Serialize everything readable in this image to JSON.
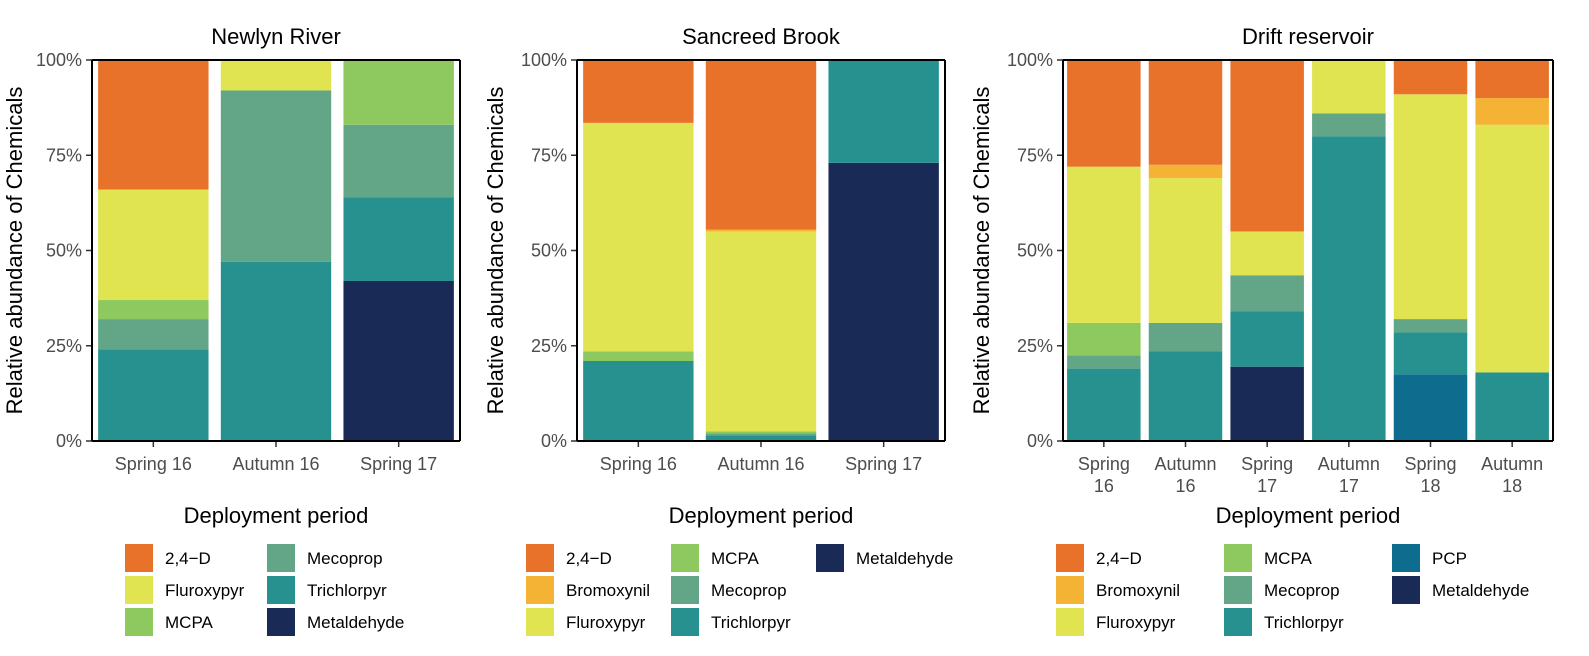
{
  "y_axis_label": "Relative abundance of Chemicals",
  "x_axis_label": "Deployment period",
  "y_ticks": [
    "0%",
    "25%",
    "50%",
    "75%",
    "100%"
  ],
  "colors": {
    "2,4−D": "#e8722a",
    "Bromoxynil": "#f5b335",
    "Fluroxypyr": "#e0e451",
    "MCPA": "#8dc95e",
    "Mecoprop": "#63a687",
    "Trichlorpyr": "#26918f",
    "PCP": "#0e6d8e",
    "Metaldehyde": "#1a2a56"
  },
  "chart_data": [
    {
      "type": "bar",
      "stacked": true,
      "title": "Newlyn River",
      "xlabel": "Deployment period",
      "ylabel": "Relative abundance of Chemicals",
      "ylim": [
        0,
        100
      ],
      "categories": [
        "Spring 16",
        "Autumn 16",
        "Spring 17"
      ],
      "series": [
        {
          "name": "Metaldehyde",
          "values": [
            0,
            0,
            42
          ]
        },
        {
          "name": "Trichlorpyr",
          "values": [
            24,
            47,
            22
          ]
        },
        {
          "name": "Mecoprop",
          "values": [
            8,
            45,
            19
          ]
        },
        {
          "name": "MCPA",
          "values": [
            5,
            0,
            17
          ]
        },
        {
          "name": "Fluroxypyr",
          "values": [
            29,
            8,
            0
          ]
        },
        {
          "name": "2,4−D",
          "values": [
            34,
            0,
            0
          ]
        }
      ],
      "legend": [
        "2,4−D",
        "Fluroxypyr",
        "MCPA",
        "Mecoprop",
        "Trichlorpyr",
        "Metaldehyde"
      ]
    },
    {
      "type": "bar",
      "stacked": true,
      "title": "Sancreed Brook",
      "xlabel": "Deployment period",
      "ylabel": "Relative abundance of Chemicals",
      "ylim": [
        0,
        100
      ],
      "categories": [
        "Spring 16",
        "Autumn 16",
        "Spring 17"
      ],
      "series": [
        {
          "name": "Metaldehyde",
          "values": [
            0,
            0,
            73
          ]
        },
        {
          "name": "Trichlorpyr",
          "values": [
            21,
            1.5,
            27
          ]
        },
        {
          "name": "Mecoprop",
          "values": [
            0,
            0.5,
            0
          ]
        },
        {
          "name": "MCPA",
          "values": [
            2.5,
            0.5,
            0
          ]
        },
        {
          "name": "Fluroxypyr",
          "values": [
            60,
            52.5,
            0
          ]
        },
        {
          "name": "Bromoxynil",
          "values": [
            0,
            0.5,
            0
          ]
        },
        {
          "name": "2,4−D",
          "values": [
            16.5,
            44.5,
            0
          ]
        }
      ],
      "legend": [
        "2,4−D",
        "Bromoxynil",
        "Fluroxypyr",
        "MCPA",
        "Mecoprop",
        "Trichlorpyr",
        "Metaldehyde"
      ]
    },
    {
      "type": "bar",
      "stacked": true,
      "title": "Drift reservoir",
      "xlabel": "Deployment period",
      "ylabel": "Relative abundance of Chemicals",
      "ylim": [
        0,
        100
      ],
      "categories": [
        "Spring\n16",
        "Autumn\n16",
        "Spring\n17",
        "Autumn\n17",
        "Spring\n18",
        "Autumn\n18"
      ],
      "series": [
        {
          "name": "Metaldehyde",
          "values": [
            0,
            0,
            19.5,
            0,
            0,
            0
          ]
        },
        {
          "name": "PCP",
          "values": [
            0,
            0,
            0,
            0,
            17.5,
            0
          ]
        },
        {
          "name": "Trichlorpyr",
          "values": [
            19,
            23.5,
            14.5,
            80,
            11,
            18
          ]
        },
        {
          "name": "Mecoprop",
          "values": [
            3.5,
            7.5,
            9.5,
            6,
            3.5,
            0
          ]
        },
        {
          "name": "MCPA",
          "values": [
            8.5,
            0,
            0,
            0,
            0,
            0
          ]
        },
        {
          "name": "Fluroxypyr",
          "values": [
            41,
            38,
            11.5,
            14,
            59,
            65
          ]
        },
        {
          "name": "Bromoxynil",
          "values": [
            0,
            3.5,
            0,
            0,
            0,
            7
          ]
        },
        {
          "name": "2,4−D",
          "values": [
            28,
            27.5,
            45,
            0,
            9,
            10
          ]
        }
      ],
      "legend": [
        "2,4−D",
        "Bromoxynil",
        "Fluroxypyr",
        "MCPA",
        "Mecoprop",
        "Trichlorpyr",
        "PCP",
        "Metaldehyde"
      ]
    }
  ]
}
